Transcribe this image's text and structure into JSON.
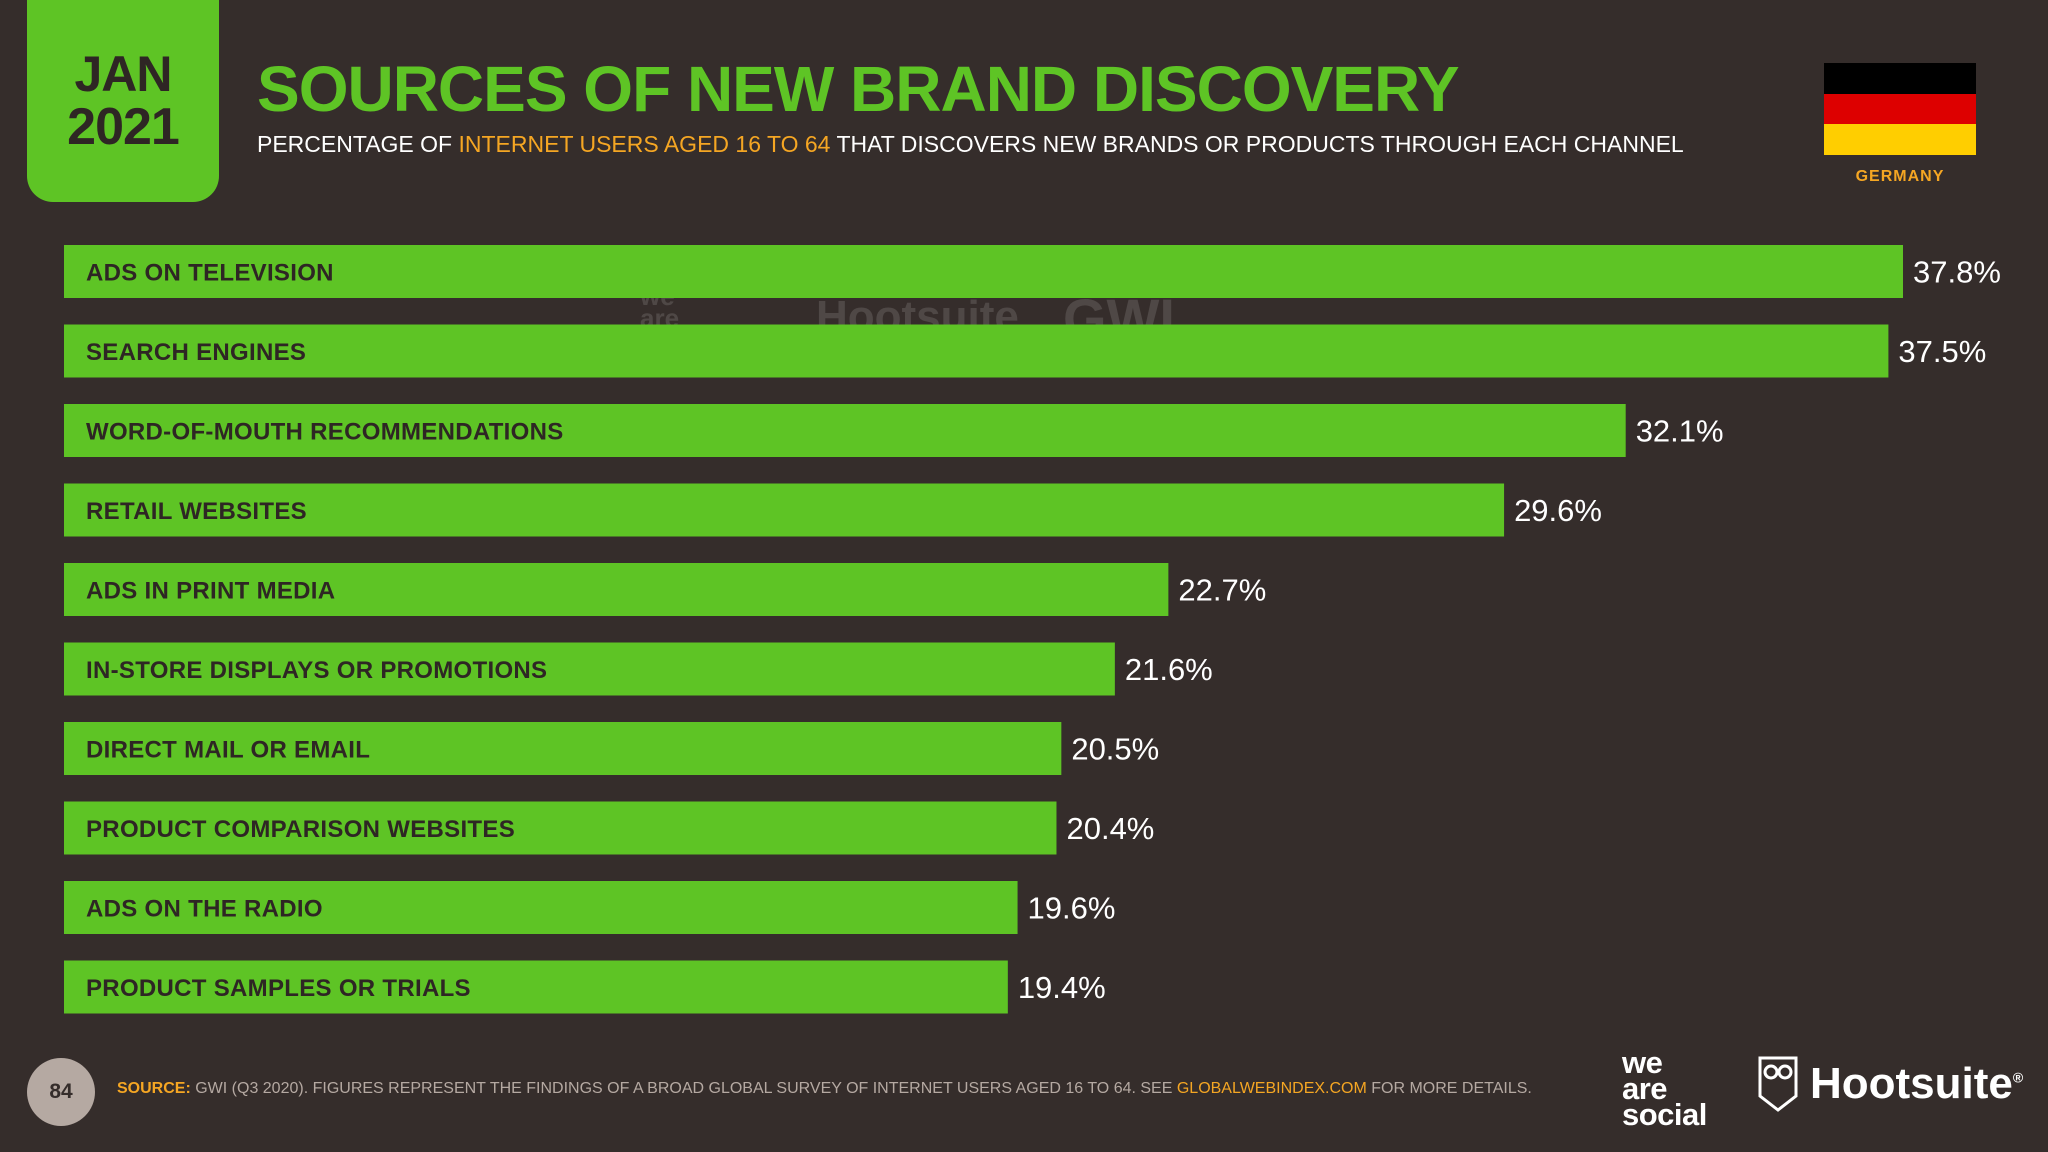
{
  "header": {
    "month": "JAN",
    "year": "2021",
    "title": "SOURCES OF NEW BRAND DISCOVERY",
    "subtitle_part1": "PERCENTAGE OF ",
    "subtitle_highlight": "INTERNET USERS AGED 16 TO 64",
    "subtitle_part2": " THAT DISCOVERS NEW BRANDS OR PRODUCTS THROUGH EACH CHANNEL",
    "country": "GERMANY",
    "flag_colors": [
      "#000000",
      "#dd0000",
      "#ffce00"
    ]
  },
  "colors": {
    "accent": "#5ec425",
    "highlight": "#f5a623",
    "background": "#352d2b"
  },
  "chart_data": {
    "type": "bar",
    "orientation": "horizontal",
    "categories": [
      "ADS ON TELEVISION",
      "SEARCH ENGINES",
      "WORD-OF-MOUTH RECOMMENDATIONS",
      "RETAIL WEBSITES",
      "ADS IN PRINT MEDIA",
      "IN-STORE DISPLAYS OR PROMOTIONS",
      "DIRECT MAIL OR EMAIL",
      "PRODUCT COMPARISON WEBSITES",
      "ADS ON THE RADIO",
      "PRODUCT SAMPLES OR TRIALS"
    ],
    "values": [
      37.8,
      37.5,
      32.1,
      29.6,
      22.7,
      21.6,
      20.5,
      20.4,
      19.6,
      19.4
    ],
    "value_labels": [
      "37.8%",
      "37.5%",
      "32.1%",
      "29.6%",
      "22.7%",
      "21.6%",
      "20.5%",
      "20.4%",
      "19.6%",
      "19.4%"
    ],
    "xlim": [
      0,
      37.8
    ],
    "grid": false,
    "title": "SOURCES OF NEW BRAND DISCOVERY",
    "xlabel": "",
    "ylabel": ""
  },
  "watermark": {
    "was": "we are social",
    "hootsuite": "Hootsuite",
    "gwi": "GWI."
  },
  "footer": {
    "page_number": "84",
    "source_label": "SOURCE:",
    "source_text": " GWI (Q3 2020). FIGURES REPRESENT THE FINDINGS OF A BROAD GLOBAL SURVEY OF INTERNET USERS AGED 16 TO 64. SEE ",
    "source_link": "GLOBALWEBINDEX.COM",
    "source_tail": " FOR MORE DETAILS.",
    "logo_was_line1": "we",
    "logo_was_line2": "are",
    "logo_was_line3": "social",
    "logo_hootsuite": "Hootsuite",
    "logo_trademark": "®"
  }
}
